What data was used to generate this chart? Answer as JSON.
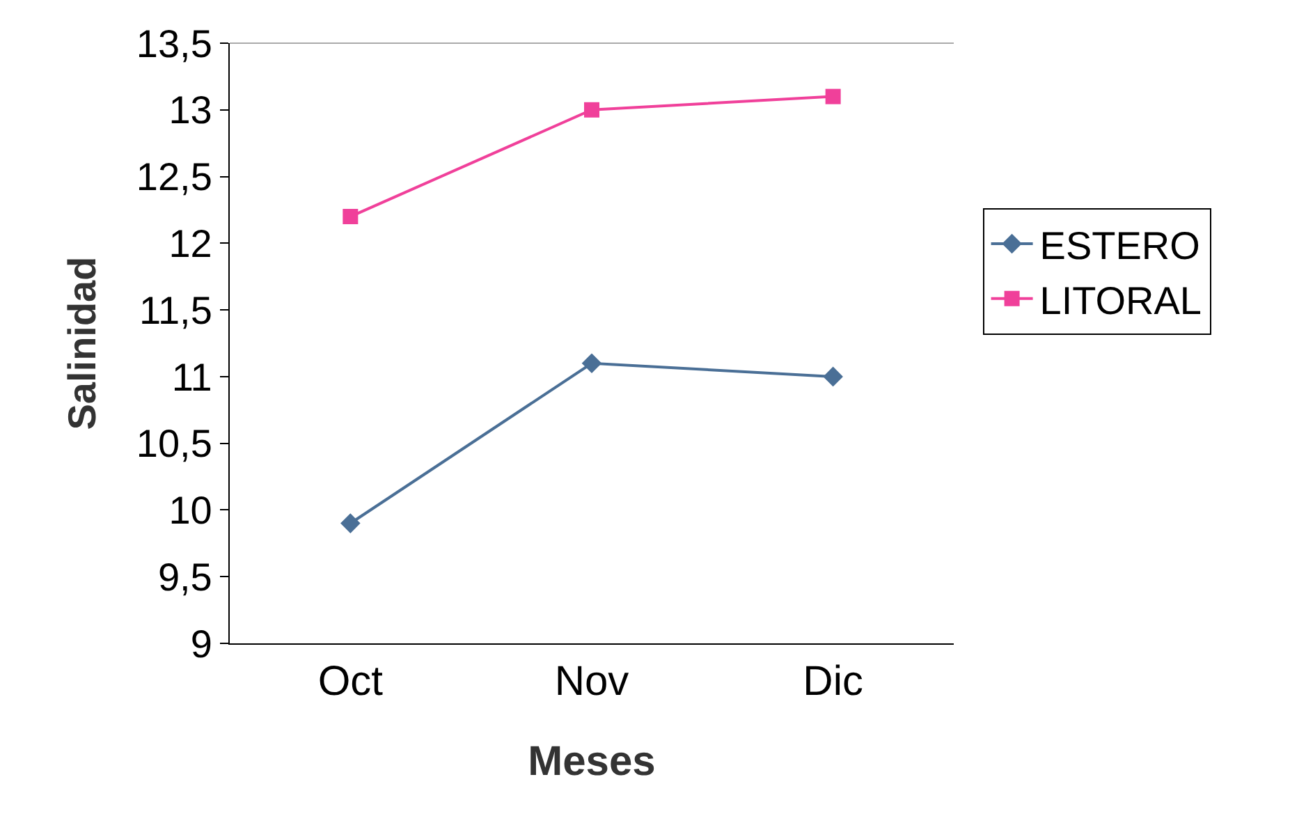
{
  "chart_data": {
    "type": "line",
    "xlabel": "Meses",
    "ylabel": "Salinidad",
    "categories": [
      "Oct",
      "Nov",
      "Dic"
    ],
    "series": [
      {
        "name": "ESTERO",
        "color": "#4a6f96",
        "marker": "diamond",
        "values": [
          9.9,
          11.1,
          11.0
        ]
      },
      {
        "name": "LITORAL",
        "color": "#f0409a",
        "marker": "square",
        "values": [
          12.2,
          13.0,
          13.1
        ]
      }
    ],
    "ylim": [
      9,
      13.5
    ],
    "yticks": [
      9,
      {
        "value": 9.5,
        "label": "9,5"
      },
      10,
      {
        "value": 10.5,
        "label": "10,5"
      },
      11,
      {
        "value": 11.5,
        "label": "11,5"
      },
      12,
      {
        "value": 12.5,
        "label": "12,5"
      },
      13,
      {
        "value": 13.5,
        "label": "13,5"
      }
    ],
    "grid": false,
    "legend": "right",
    "line_style": "solid"
  }
}
